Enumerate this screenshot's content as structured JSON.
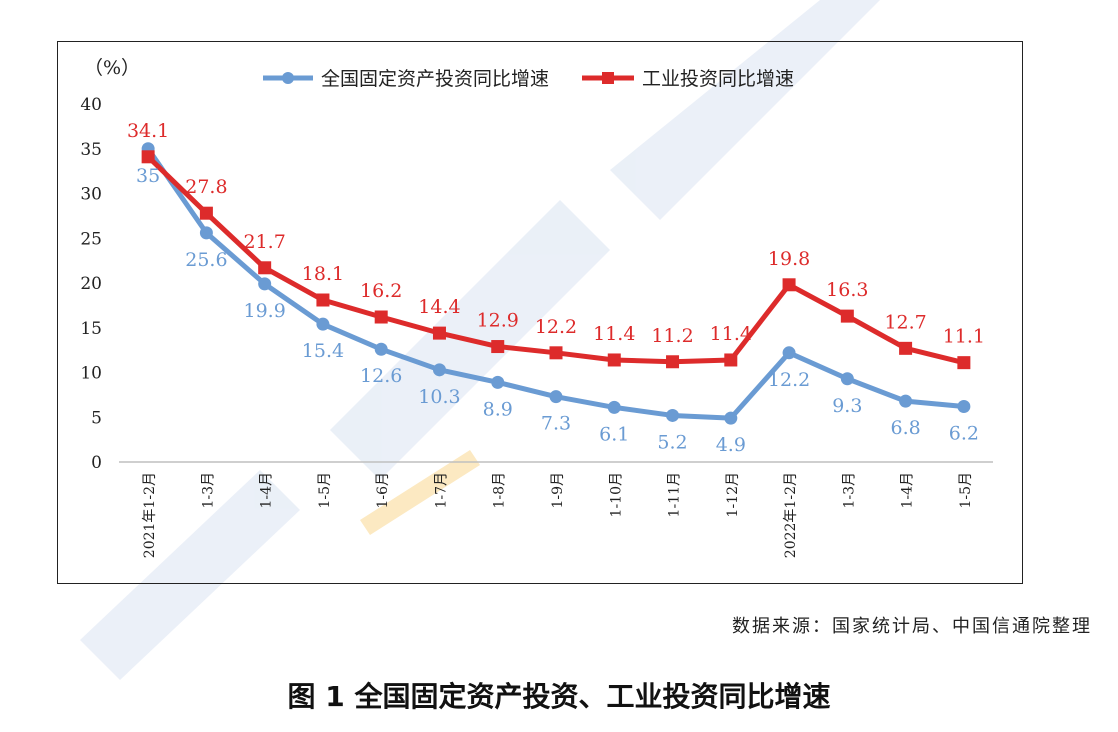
{
  "colors": {
    "series1": "#6a9bd3",
    "series2": "#dd2b2b",
    "axis": "#bfbfbf",
    "text": "#222222",
    "watermark": "#dfe7f3"
  },
  "caption": "图 1  全国固定资产投资、工业投资同比增速",
  "source": "数据来源：国家统计局、中国信通院整理",
  "chart_data": {
    "type": "line",
    "unit_label": "（%）",
    "categories": [
      "2021年1-2月",
      "1-3月",
      "1-4月",
      "1-5月",
      "1-6月",
      "1-7月",
      "1-8月",
      "1-9月",
      "1-10月",
      "1-11月",
      "1-12月",
      "2022年1-2月",
      "1-3月",
      "1-4月",
      "1-5月"
    ],
    "ylim": [
      0,
      40
    ],
    "yticks": [
      0,
      5,
      10,
      15,
      20,
      25,
      30,
      35,
      40
    ],
    "legend_position": "top",
    "grid": false,
    "series": [
      {
        "name": "全国固定资产投资同比增速",
        "marker": "circle",
        "values": [
          35,
          25.6,
          19.9,
          15.4,
          12.6,
          10.3,
          8.9,
          7.3,
          6.1,
          5.2,
          4.9,
          12.2,
          9.3,
          6.8,
          6.2
        ],
        "labels": [
          "35",
          "25.6",
          "19.9",
          "15.4",
          "12.6",
          "10.3",
          "8.9",
          "7.3",
          "6.1",
          "5.2",
          "4.9",
          "12.2",
          "9.3",
          "6.8",
          "6.2"
        ]
      },
      {
        "name": "工业投资同比增速",
        "marker": "square",
        "values": [
          34.1,
          27.8,
          21.7,
          18.1,
          16.2,
          14.4,
          12.9,
          12.2,
          11.4,
          11.2,
          11.4,
          19.8,
          16.3,
          12.7,
          11.1
        ],
        "labels": [
          "34.1",
          "27.8",
          "21.7",
          "18.1",
          "16.2",
          "14.4",
          "12.9",
          "12.2",
          "11.4",
          "11.2",
          "11.4",
          "19.8",
          "16.3",
          "12.7",
          "11.1"
        ]
      }
    ]
  }
}
